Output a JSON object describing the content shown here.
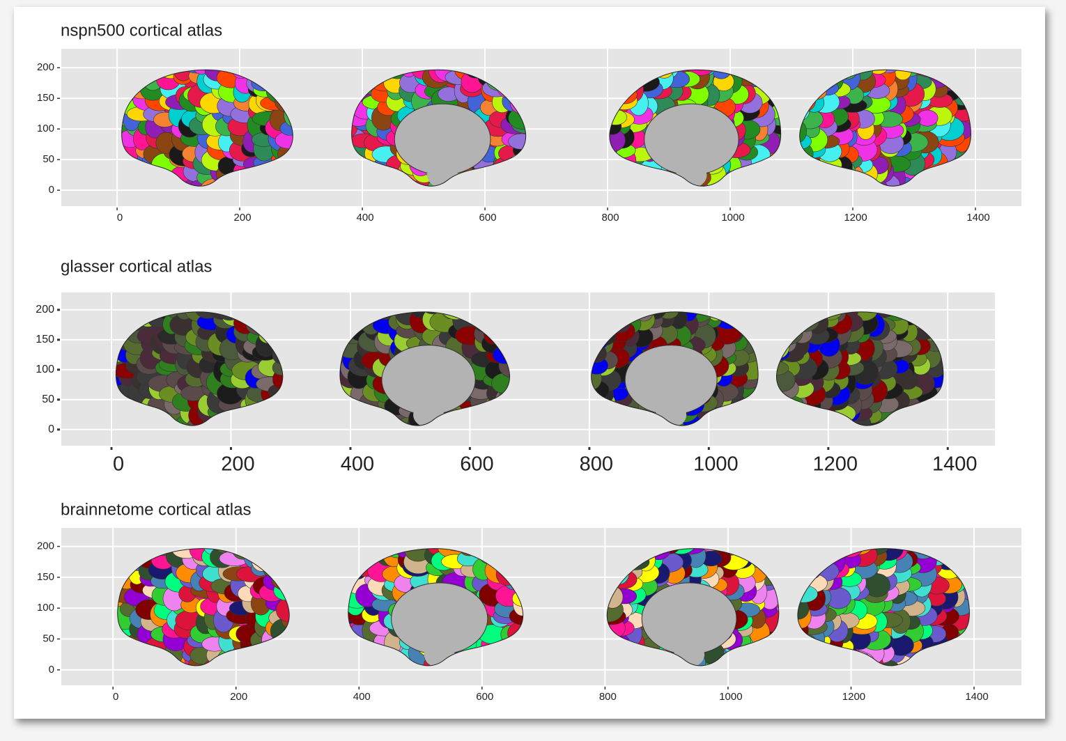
{
  "chart_data": [
    {
      "type": "brain",
      "title": "nspn500 cortical atlas",
      "xlim": [
        -91,
        1475
      ],
      "ylim": [
        -26,
        231
      ],
      "xticks": [
        0,
        200,
        400,
        600,
        800,
        1000,
        1200,
        1400
      ],
      "yticks": [
        0,
        50,
        100,
        150,
        200
      ],
      "grid": true,
      "colors": [
        "#e6194b",
        "#3cb44b",
        "#7fff00",
        "#4363d8",
        "#f58231",
        "#911eb4",
        "#46f0f0",
        "#f032e6",
        "#bcf60c",
        "#2e8b57",
        "#8b4513",
        "#1a1a1a",
        "#ff1493",
        "#9370db",
        "#00ced1",
        "#ffd700",
        "#228b22",
        "#ff4500"
      ]
    },
    {
      "type": "brain",
      "title": "glasser cortical atlas",
      "xlim": [
        -84,
        1479
      ],
      "ylim": [
        -27,
        229
      ],
      "xticks": [
        0,
        200,
        400,
        600,
        800,
        1000,
        1200,
        1400
      ],
      "yticks": [
        0,
        50,
        100,
        150,
        200
      ],
      "grid": true,
      "colors": [
        "#3a3a3a",
        "#5a4a4a",
        "#2a2a2a",
        "#4a5a3a",
        "#6b8e23",
        "#2f7f1f",
        "#3b3030",
        "#8b0000",
        "#1c1c1c",
        "#556b2f",
        "#7a6a6a",
        "#0000ee",
        "#4b2a3a",
        "#9acd32"
      ]
    },
    {
      "type": "brain",
      "title": "brainnetome cortical atlas",
      "xlim": [
        -84,
        1477
      ],
      "ylim": [
        -25,
        230
      ],
      "xticks": [
        0,
        200,
        400,
        600,
        800,
        1000,
        1200,
        1400
      ],
      "yticks": [
        0,
        50,
        100,
        150,
        200
      ],
      "grid": true,
      "colors": [
        "#ff1493",
        "#8b4513",
        "#32cd32",
        "#9400d3",
        "#ff8c00",
        "#4682b4",
        "#2f4f2f",
        "#dc143c",
        "#ffdab9",
        "#40e0d0",
        "#556b2f",
        "#ee82ee",
        "#800000",
        "#00ff7f",
        "#6a5acd",
        "#ffff00",
        "#d2b48c",
        "#191970"
      ]
    }
  ]
}
